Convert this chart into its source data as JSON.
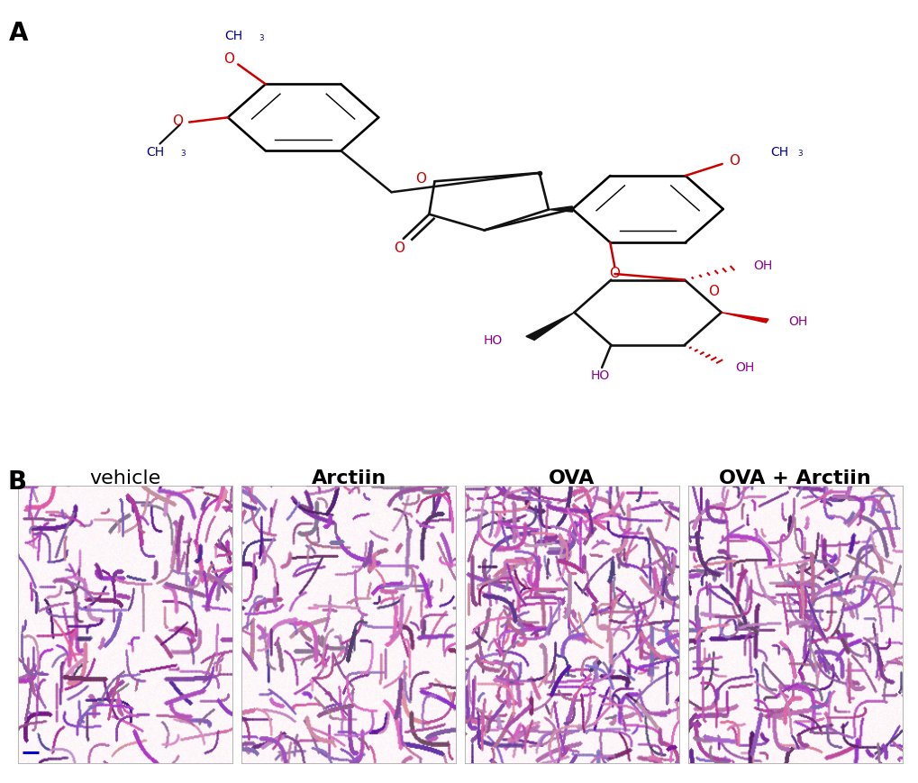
{
  "panel_A_label": "A",
  "panel_B_label": "B",
  "panel_B_titles": [
    "vehicle",
    "Arctiin",
    "OVA",
    "OVA + Arctiin"
  ],
  "panel_B_title_fontsize": 16,
  "panel_label_fontsize": 20,
  "scale_bar_color": "#0000cc",
  "background_color": "#ffffff",
  "mol_black": "#111111",
  "mol_red": "#cc0000",
  "mol_blue": "#00008b",
  "mol_purple": "#8b008b",
  "fig_width": 10.2,
  "fig_height": 8.69,
  "vehicle_fontweight": "normal",
  "other_fontweight": "bold"
}
